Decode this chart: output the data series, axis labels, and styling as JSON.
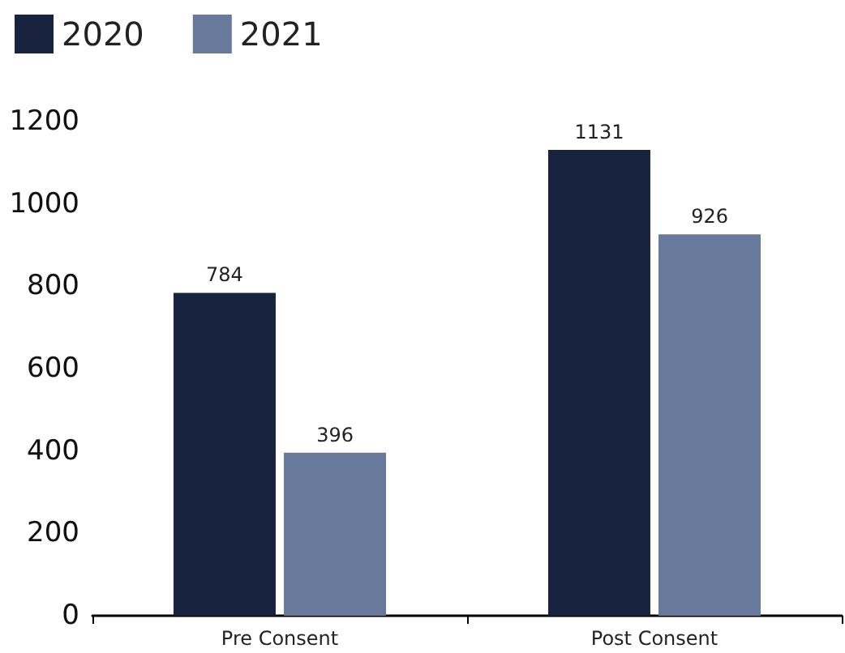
{
  "chart_data": {
    "type": "bar",
    "categories": [
      "Pre Consent",
      "Post Consent"
    ],
    "series": [
      {
        "name": "2020",
        "color": "#18233f",
        "values": [
          784,
          1131
        ]
      },
      {
        "name": "2021",
        "color": "#687a9b",
        "values": [
          396,
          926
        ]
      }
    ],
    "ylim": [
      0,
      1200
    ],
    "yticks": [
      0,
      200,
      400,
      600,
      800,
      1000,
      1200
    ],
    "data_labels": true,
    "legend": "top left",
    "grid": false
  }
}
